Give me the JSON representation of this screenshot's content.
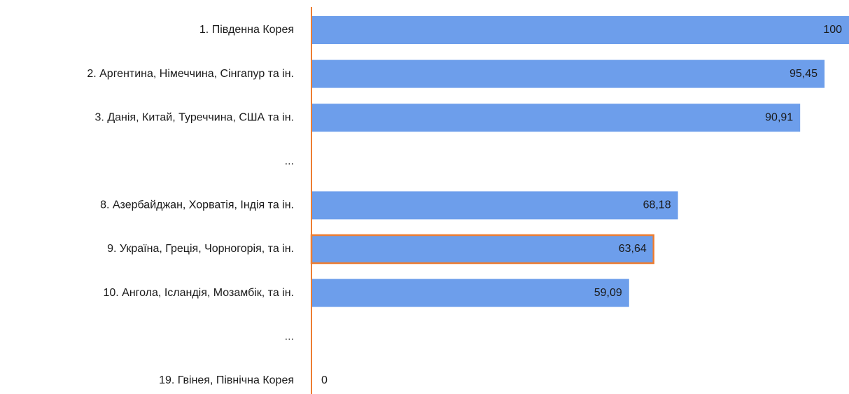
{
  "chart_data": {
    "type": "bar",
    "orientation": "horizontal",
    "categories": [
      "1. Південна Корея",
      "2. Аргентина, Німеччина, Сінгапур та ін.",
      "3. Данія, Китай, Туреччина, США та ін.",
      "...",
      "8. Азербайджан, Хорватія, Індія та ін.",
      "9. Україна, Греція, Чорногорія, та ін.",
      "10. Ангола, Ісландія, Мозамбік, та ін.",
      "...",
      "19. Гвінея, Північна Корея"
    ],
    "values": [
      100,
      95.45,
      90.91,
      null,
      68.18,
      63.64,
      59.09,
      null,
      0
    ],
    "value_labels": [
      "100",
      "95,45",
      "90,91",
      null,
      "68,18",
      "63,64",
      "59,09",
      null,
      "0"
    ],
    "color": "#6d9eeb",
    "xlim": [
      0,
      100
    ],
    "axis_color": "#ed7d31",
    "highlight": {
      "index": 5,
      "color": "#ed7d31"
    }
  }
}
